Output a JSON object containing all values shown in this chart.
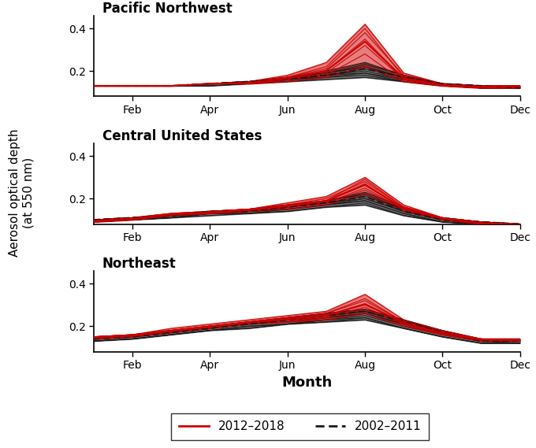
{
  "titles": [
    "Pacific Northwest",
    "Central United States",
    "Northeast"
  ],
  "xlabel": "Month",
  "ylabel": "Aerosol optical depth\n(at 550 nm)",
  "months": [
    1,
    2,
    3,
    4,
    5,
    6,
    7,
    8,
    9,
    10,
    11,
    12
  ],
  "month_labels": [
    "Feb",
    "Apr",
    "Jun",
    "Aug",
    "Oct",
    "Dec"
  ],
  "month_ticks": [
    2,
    4,
    6,
    8,
    10,
    12
  ],
  "ylim": [
    0.08,
    0.46
  ],
  "yticks": [
    0.2,
    0.4
  ],
  "legend_labels": [
    "2012–2018",
    "2002–2011"
  ],
  "red_color": "#cc0000",
  "black_color": "#1a1a1a",
  "pnw": {
    "red_lines": [
      [
        0.13,
        0.13,
        0.13,
        0.14,
        0.14,
        0.15,
        0.17,
        0.22,
        0.15,
        0.13,
        0.12,
        0.12
      ],
      [
        0.13,
        0.13,
        0.13,
        0.14,
        0.14,
        0.16,
        0.18,
        0.28,
        0.15,
        0.13,
        0.12,
        0.12
      ],
      [
        0.13,
        0.13,
        0.13,
        0.14,
        0.14,
        0.16,
        0.2,
        0.35,
        0.16,
        0.13,
        0.13,
        0.13
      ],
      [
        0.13,
        0.13,
        0.13,
        0.14,
        0.15,
        0.17,
        0.22,
        0.4,
        0.17,
        0.14,
        0.13,
        0.13
      ],
      [
        0.13,
        0.13,
        0.13,
        0.14,
        0.15,
        0.18,
        0.24,
        0.42,
        0.19,
        0.14,
        0.13,
        0.13
      ],
      [
        0.13,
        0.13,
        0.13,
        0.14,
        0.15,
        0.17,
        0.21,
        0.38,
        0.18,
        0.14,
        0.13,
        0.13
      ],
      [
        0.13,
        0.13,
        0.13,
        0.14,
        0.14,
        0.16,
        0.19,
        0.32,
        0.16,
        0.13,
        0.12,
        0.12
      ]
    ],
    "black_lines": [
      [
        0.13,
        0.13,
        0.13,
        0.14,
        0.15,
        0.16,
        0.17,
        0.18,
        0.15,
        0.13,
        0.12,
        0.12
      ],
      [
        0.13,
        0.13,
        0.13,
        0.14,
        0.15,
        0.16,
        0.18,
        0.19,
        0.16,
        0.14,
        0.12,
        0.12
      ],
      [
        0.13,
        0.13,
        0.13,
        0.14,
        0.15,
        0.16,
        0.18,
        0.21,
        0.17,
        0.14,
        0.13,
        0.12
      ],
      [
        0.13,
        0.13,
        0.13,
        0.14,
        0.15,
        0.17,
        0.19,
        0.22,
        0.17,
        0.14,
        0.13,
        0.13
      ],
      [
        0.13,
        0.13,
        0.13,
        0.14,
        0.15,
        0.17,
        0.19,
        0.23,
        0.18,
        0.14,
        0.13,
        0.13
      ],
      [
        0.13,
        0.13,
        0.13,
        0.14,
        0.15,
        0.17,
        0.2,
        0.24,
        0.18,
        0.14,
        0.13,
        0.13
      ],
      [
        0.13,
        0.13,
        0.13,
        0.14,
        0.15,
        0.16,
        0.19,
        0.22,
        0.17,
        0.14,
        0.13,
        0.12
      ],
      [
        0.13,
        0.13,
        0.13,
        0.14,
        0.14,
        0.16,
        0.18,
        0.2,
        0.16,
        0.13,
        0.12,
        0.12
      ],
      [
        0.13,
        0.13,
        0.13,
        0.13,
        0.14,
        0.15,
        0.17,
        0.19,
        0.15,
        0.13,
        0.12,
        0.12
      ],
      [
        0.13,
        0.13,
        0.13,
        0.13,
        0.14,
        0.15,
        0.16,
        0.17,
        0.15,
        0.13,
        0.12,
        0.12
      ]
    ],
    "black_mean": [
      0.13,
      0.13,
      0.13,
      0.14,
      0.15,
      0.16,
      0.18,
      0.21,
      0.17,
      0.14,
      0.13,
      0.12
    ]
  },
  "cus": {
    "red_lines": [
      [
        0.09,
        0.1,
        0.12,
        0.13,
        0.14,
        0.15,
        0.17,
        0.22,
        0.14,
        0.1,
        0.08,
        0.07
      ],
      [
        0.09,
        0.1,
        0.12,
        0.13,
        0.14,
        0.16,
        0.18,
        0.24,
        0.15,
        0.1,
        0.08,
        0.08
      ],
      [
        0.1,
        0.11,
        0.12,
        0.14,
        0.15,
        0.16,
        0.19,
        0.27,
        0.15,
        0.11,
        0.09,
        0.08
      ],
      [
        0.1,
        0.11,
        0.13,
        0.14,
        0.15,
        0.17,
        0.19,
        0.29,
        0.16,
        0.11,
        0.09,
        0.08
      ],
      [
        0.1,
        0.11,
        0.13,
        0.14,
        0.15,
        0.18,
        0.21,
        0.3,
        0.17,
        0.11,
        0.09,
        0.08
      ],
      [
        0.1,
        0.11,
        0.13,
        0.14,
        0.15,
        0.17,
        0.2,
        0.28,
        0.16,
        0.11,
        0.09,
        0.08
      ],
      [
        0.09,
        0.1,
        0.12,
        0.13,
        0.14,
        0.16,
        0.18,
        0.25,
        0.15,
        0.1,
        0.08,
        0.07
      ]
    ],
    "black_lines": [
      [
        0.09,
        0.1,
        0.11,
        0.13,
        0.13,
        0.14,
        0.16,
        0.17,
        0.12,
        0.09,
        0.08,
        0.07
      ],
      [
        0.09,
        0.1,
        0.11,
        0.13,
        0.14,
        0.15,
        0.17,
        0.19,
        0.13,
        0.09,
        0.08,
        0.07
      ],
      [
        0.1,
        0.1,
        0.12,
        0.13,
        0.14,
        0.16,
        0.18,
        0.2,
        0.14,
        0.1,
        0.08,
        0.07
      ],
      [
        0.1,
        0.11,
        0.12,
        0.14,
        0.14,
        0.16,
        0.18,
        0.21,
        0.15,
        0.1,
        0.09,
        0.08
      ],
      [
        0.1,
        0.11,
        0.12,
        0.14,
        0.15,
        0.17,
        0.19,
        0.22,
        0.15,
        0.11,
        0.09,
        0.08
      ],
      [
        0.1,
        0.11,
        0.12,
        0.14,
        0.15,
        0.17,
        0.19,
        0.23,
        0.16,
        0.11,
        0.09,
        0.08
      ],
      [
        0.1,
        0.11,
        0.12,
        0.14,
        0.15,
        0.16,
        0.19,
        0.22,
        0.15,
        0.1,
        0.09,
        0.08
      ],
      [
        0.09,
        0.1,
        0.11,
        0.13,
        0.14,
        0.15,
        0.17,
        0.2,
        0.14,
        0.1,
        0.08,
        0.07
      ],
      [
        0.09,
        0.1,
        0.11,
        0.13,
        0.13,
        0.15,
        0.17,
        0.19,
        0.13,
        0.09,
        0.08,
        0.07
      ],
      [
        0.09,
        0.1,
        0.11,
        0.12,
        0.13,
        0.14,
        0.16,
        0.18,
        0.12,
        0.09,
        0.08,
        0.07
      ]
    ],
    "black_mean": [
      0.1,
      0.11,
      0.12,
      0.14,
      0.14,
      0.16,
      0.18,
      0.21,
      0.14,
      0.1,
      0.09,
      0.08
    ]
  },
  "ne": {
    "red_lines": [
      [
        0.14,
        0.15,
        0.17,
        0.19,
        0.21,
        0.22,
        0.23,
        0.26,
        0.2,
        0.16,
        0.13,
        0.13
      ],
      [
        0.14,
        0.15,
        0.17,
        0.19,
        0.21,
        0.23,
        0.24,
        0.28,
        0.21,
        0.16,
        0.13,
        0.13
      ],
      [
        0.14,
        0.15,
        0.18,
        0.2,
        0.22,
        0.23,
        0.25,
        0.3,
        0.22,
        0.17,
        0.14,
        0.13
      ],
      [
        0.15,
        0.16,
        0.18,
        0.2,
        0.22,
        0.24,
        0.26,
        0.33,
        0.22,
        0.17,
        0.14,
        0.14
      ],
      [
        0.15,
        0.16,
        0.19,
        0.21,
        0.23,
        0.25,
        0.27,
        0.35,
        0.23,
        0.18,
        0.14,
        0.14
      ],
      [
        0.15,
        0.16,
        0.18,
        0.2,
        0.22,
        0.24,
        0.26,
        0.32,
        0.22,
        0.17,
        0.14,
        0.13
      ],
      [
        0.14,
        0.15,
        0.17,
        0.19,
        0.21,
        0.22,
        0.24,
        0.29,
        0.21,
        0.16,
        0.13,
        0.13
      ]
    ],
    "black_lines": [
      [
        0.13,
        0.14,
        0.16,
        0.18,
        0.19,
        0.21,
        0.22,
        0.23,
        0.19,
        0.15,
        0.12,
        0.12
      ],
      [
        0.13,
        0.14,
        0.16,
        0.18,
        0.2,
        0.21,
        0.23,
        0.24,
        0.19,
        0.15,
        0.12,
        0.12
      ],
      [
        0.14,
        0.15,
        0.17,
        0.19,
        0.21,
        0.22,
        0.24,
        0.26,
        0.21,
        0.16,
        0.13,
        0.13
      ],
      [
        0.14,
        0.15,
        0.17,
        0.19,
        0.21,
        0.23,
        0.25,
        0.27,
        0.22,
        0.17,
        0.13,
        0.13
      ],
      [
        0.15,
        0.16,
        0.18,
        0.2,
        0.22,
        0.24,
        0.26,
        0.28,
        0.23,
        0.18,
        0.14,
        0.14
      ],
      [
        0.15,
        0.16,
        0.18,
        0.2,
        0.22,
        0.24,
        0.26,
        0.28,
        0.23,
        0.17,
        0.14,
        0.13
      ],
      [
        0.14,
        0.15,
        0.17,
        0.2,
        0.21,
        0.23,
        0.25,
        0.27,
        0.22,
        0.17,
        0.13,
        0.13
      ],
      [
        0.14,
        0.15,
        0.17,
        0.19,
        0.21,
        0.22,
        0.24,
        0.26,
        0.21,
        0.16,
        0.13,
        0.13
      ],
      [
        0.13,
        0.14,
        0.16,
        0.18,
        0.2,
        0.21,
        0.23,
        0.25,
        0.2,
        0.16,
        0.13,
        0.12
      ],
      [
        0.13,
        0.14,
        0.16,
        0.18,
        0.19,
        0.21,
        0.22,
        0.24,
        0.19,
        0.15,
        0.12,
        0.12
      ]
    ],
    "black_mean": [
      0.14,
      0.15,
      0.17,
      0.19,
      0.21,
      0.23,
      0.25,
      0.27,
      0.22,
      0.17,
      0.13,
      0.13
    ]
  }
}
